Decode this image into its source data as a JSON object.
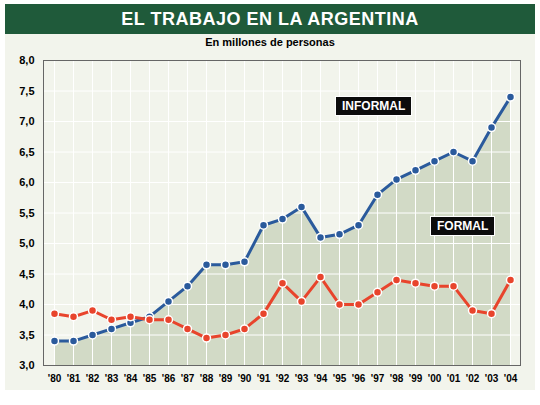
{
  "chart_data": {
    "type": "line",
    "title": "EL TRABAJO EN LA ARGENTINA",
    "subtitle": "En millones de personas",
    "categories": [
      "'80",
      "'81",
      "'82",
      "'83",
      "'84",
      "'85",
      "'86",
      "'87",
      "'88",
      "'89",
      "'90",
      "'91",
      "'92",
      "'93",
      "'94",
      "'95",
      "'96",
      "'97",
      "'98",
      "'99",
      "'00",
      "'01",
      "'02",
      "'03",
      "'04"
    ],
    "series": [
      {
        "name": "INFORMAL",
        "color": "#2a5a9c",
        "values": [
          3.4,
          3.4,
          3.5,
          3.6,
          3.7,
          3.8,
          4.05,
          4.3,
          4.65,
          4.65,
          4.7,
          5.3,
          5.4,
          5.6,
          5.1,
          5.15,
          5.3,
          5.8,
          6.05,
          6.2,
          6.35,
          6.5,
          6.35,
          6.9,
          7.4
        ]
      },
      {
        "name": "FORMAL",
        "color": "#e8442c",
        "values": [
          3.85,
          3.8,
          3.9,
          3.75,
          3.8,
          3.75,
          3.75,
          3.6,
          3.45,
          3.5,
          3.6,
          3.85,
          4.35,
          4.05,
          4.45,
          4.0,
          4.0,
          4.2,
          4.4,
          4.35,
          4.3,
          4.3,
          3.9,
          3.85,
          4.4
        ]
      }
    ],
    "ylim": [
      3,
      8
    ],
    "yticks": [
      {
        "value": 3,
        "label": "3,0"
      },
      {
        "value": 3.5,
        "label": "3,5"
      },
      {
        "value": 4,
        "label": "4,0"
      },
      {
        "value": 4.5,
        "label": "4,5"
      },
      {
        "value": 5,
        "label": "5,0"
      },
      {
        "value": 5.5,
        "label": "5,5"
      },
      {
        "value": 6,
        "label": "6,0"
      },
      {
        "value": 6.5,
        "label": "6,5"
      },
      {
        "value": 7,
        "label": "7,0"
      },
      {
        "value": 7.5,
        "label": "7,5"
      },
      {
        "value": 8,
        "label": "8,0"
      }
    ],
    "grid": true,
    "marker": "circle"
  }
}
